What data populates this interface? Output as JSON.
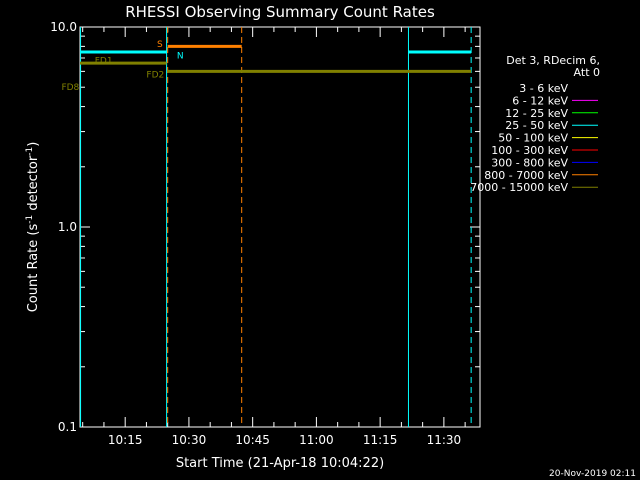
{
  "chart_data": {
    "type": "line",
    "title": "RHESSI Observing Summary Count Rates",
    "xlabel": "Start Time (21-Apr-18 10:04:22)",
    "ylabel": "Count Rate (s⁻¹ detector⁻¹)",
    "ylabel_main": "Count Rate (s",
    "ylabel_sup1": "-1",
    "ylabel_mid": " detector",
    "ylabel_sup2": "-1",
    "ylabel_end": ")",
    "y_scale": "log",
    "ylim": [
      0.1,
      10.0
    ],
    "xlim": [
      "10:04:22",
      "11:38:30"
    ],
    "grid": false,
    "legend_placement": "right",
    "y_ticks": [
      {
        "value": 10.0,
        "label": "10.0"
      },
      {
        "value": 1.0,
        "label": "1.0"
      },
      {
        "value": 0.1,
        "label": "0.1"
      }
    ],
    "x_ticks": [
      {
        "value": "10:15",
        "label": "10:15"
      },
      {
        "value": "10:30",
        "label": "10:30"
      },
      {
        "value": "10:45",
        "label": "10:45"
      },
      {
        "value": "11:00",
        "label": "11:00"
      },
      {
        "value": "11:15",
        "label": "11:15"
      },
      {
        "value": "11:30",
        "label": "11:30"
      }
    ],
    "legend": {
      "header": [
        "Det 3, RDecim 6,",
        "Att 0"
      ],
      "items": [
        {
          "label": "3 - 6 keV",
          "color": "#000000"
        },
        {
          "label": "6 - 12 keV",
          "color": "#ff00ff"
        },
        {
          "label": "12 - 25 keV",
          "color": "#00ff00"
        },
        {
          "label": "25 - 50 keV",
          "color": "#00ffff"
        },
        {
          "label": "50 - 100 keV",
          "color": "#ffff00"
        },
        {
          "label": "100 - 300 keV",
          "color": "#ff0000"
        },
        {
          "label": "300 - 800 keV",
          "color": "#0000ff"
        },
        {
          "label": "800 - 7000 keV",
          "color": "#ff8000"
        },
        {
          "label": "7000 - 15000 keV",
          "color": "#808000"
        }
      ]
    },
    "series": [
      {
        "band": "25 - 50 keV",
        "color": "#00ffff",
        "segments": [
          {
            "x": [
              "10:04:22",
              "10:24:45"
            ],
            "y": 7.5
          },
          {
            "x": [
              "11:21:40",
              "11:36:25"
            ],
            "y": 7.5
          }
        ]
      },
      {
        "band": "7000 - 15000 keV",
        "color": "#808000",
        "segments": [
          {
            "x": [
              "10:04:22",
              "10:24:45"
            ],
            "y": 6.6
          },
          {
            "x": [
              "10:25:00",
              "11:36:25"
            ],
            "y": 6.0
          }
        ]
      },
      {
        "band": "800 - 7000 keV",
        "color": "#ff8000",
        "segments": [
          {
            "x": [
              "10:25:00",
              "10:42:25"
            ],
            "y": 8.0
          }
        ]
      }
    ],
    "vlines": [
      {
        "x": "10:04:30",
        "color": "#00ffff",
        "style": "solid"
      },
      {
        "x": "10:24:45",
        "color": "#00ffff",
        "style": "solid"
      },
      {
        "x": "10:25:00",
        "color": "#ff8000",
        "style": "dashed"
      },
      {
        "x": "10:42:25",
        "color": "#ff8000",
        "style": "dashed"
      },
      {
        "x": "11:21:40",
        "color": "#00ffff",
        "style": "solid"
      },
      {
        "x": "11:36:25",
        "color": "#00ffff",
        "style": "dashed"
      }
    ],
    "annotations": [
      {
        "text": "S",
        "x": "10:22:30",
        "y": 8.2,
        "color": "#ff8000"
      },
      {
        "text": "N",
        "x": "10:27:10",
        "y": 7.2,
        "color": "#00ffff"
      },
      {
        "text": "FD1",
        "x": "10:07:50",
        "y": 6.8,
        "color": "#808000"
      },
      {
        "text": "FD2",
        "x": "10:20:00",
        "y": 5.8,
        "color": "#808000"
      },
      {
        "text": "FD8",
        "x": "10:00:00",
        "y": 5.0,
        "color": "#808000"
      }
    ],
    "footer": "20-Nov-2019 02:11"
  }
}
